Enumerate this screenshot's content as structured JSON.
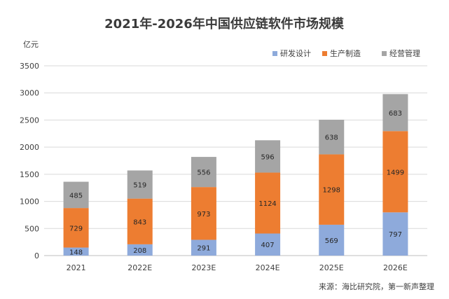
{
  "chart_data": {
    "type": "bar",
    "stacked": true,
    "title": "2021年-2026年中国供应链软件市场规模",
    "ylabel": "亿元",
    "ylim": [
      0,
      3500
    ],
    "yticks": [
      0,
      500,
      1000,
      1500,
      2000,
      2500,
      3000,
      3500
    ],
    "grid": true,
    "legend_position": "top-right",
    "categories": [
      "2021",
      "2022E",
      "2023E",
      "2024E",
      "2025E",
      "2026E"
    ],
    "series": [
      {
        "name": "研发设计",
        "color": "#8eaadb",
        "values": [
          148,
          208,
          291,
          407,
          569,
          797
        ]
      },
      {
        "name": "生产制造",
        "color": "#ed7d31",
        "values": [
          729,
          843,
          973,
          1124,
          1298,
          1499
        ]
      },
      {
        "name": "经营管理",
        "color": "#a5a5a5",
        "values": [
          485,
          519,
          556,
          596,
          638,
          683
        ]
      }
    ],
    "source": "来源：海比研究院，第一新声整理"
  }
}
